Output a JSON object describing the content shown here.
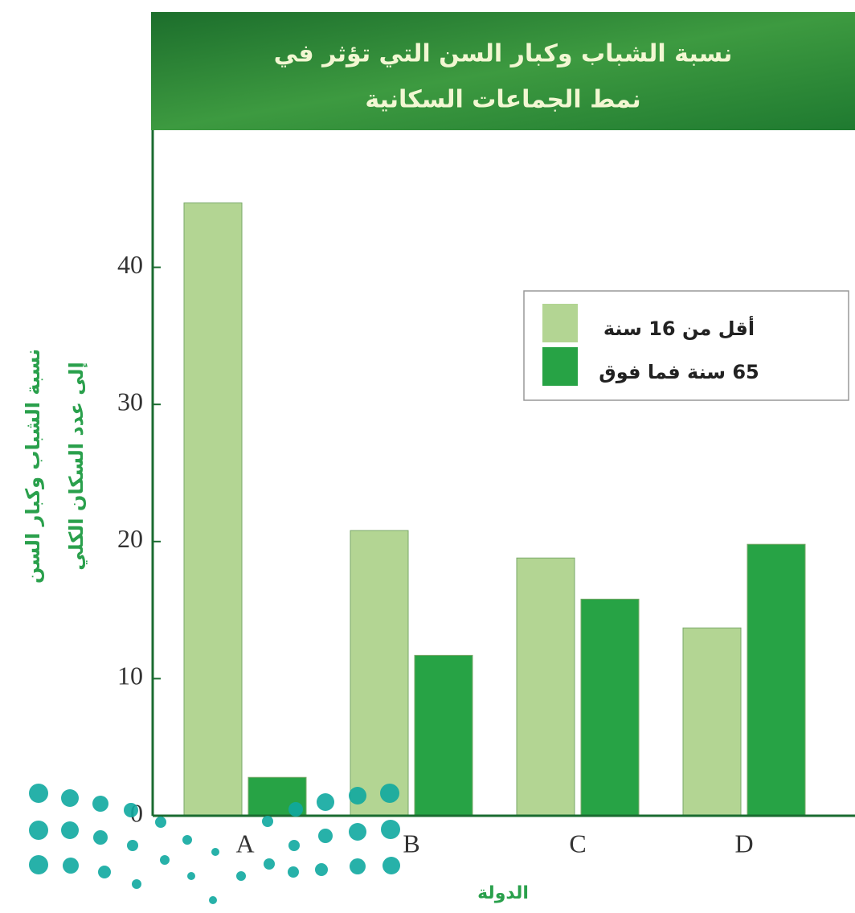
{
  "chart_data": {
    "type": "bar",
    "title": [
      "نسبة الشباب وكبار السن التي تؤثر في",
      "نمط الجماعات السكانية"
    ],
    "ylabel": [
      "نسبة الشباب وكبار السن",
      "إلى عدد السكان الكلي"
    ],
    "xlabel": "الدولة",
    "categories": [
      "A",
      "B",
      "C",
      "D"
    ],
    "series": [
      {
        "name": "أقل من 16 سنة",
        "color": "#b3d593",
        "values": [
          44.7,
          20.8,
          18.8,
          13.7
        ]
      },
      {
        "name": "65 سنة فما فوق",
        "color": "#27a345",
        "values": [
          2.8,
          11.7,
          15.8,
          19.8
        ]
      }
    ],
    "ylim": [
      0,
      50
    ],
    "yticks": [
      0,
      10,
      20,
      30,
      40
    ],
    "legend": "upper right"
  }
}
